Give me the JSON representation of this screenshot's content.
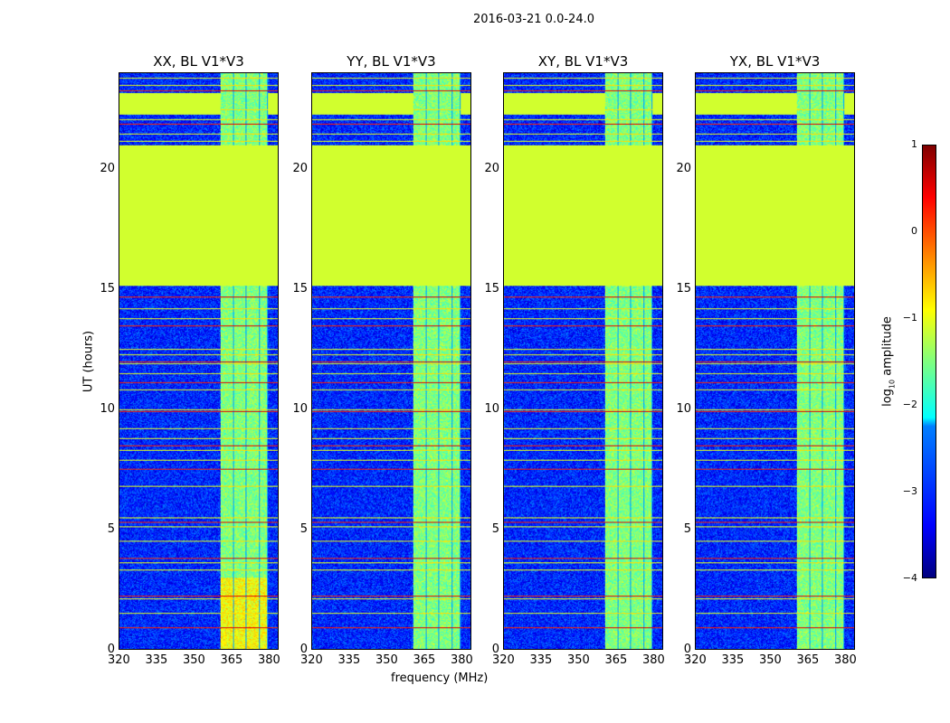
{
  "chart_data": {
    "type": "heatmap",
    "title": "2016-03-21 0.0-24.0",
    "xlabel": "frequency (MHz)",
    "ylabel": "UT (hours)",
    "xlim": [
      320,
      384
    ],
    "ylim": [
      0,
      24
    ],
    "xticks": [
      "320",
      "335",
      "350",
      "365",
      "380"
    ],
    "yticks": [
      "0",
      "5",
      "10",
      "15",
      "20"
    ],
    "panels": [
      {
        "title": "XX, BL V1*V3"
      },
      {
        "title": "YY, BL V1*V3"
      },
      {
        "title": "XY, BL V1*V3"
      },
      {
        "title": "YX, BL V1*V3"
      }
    ],
    "features": {
      "background_log_amplitude": -3.2,
      "bright_band_MHz": [
        360.5,
        380
      ],
      "bright_band_log_amplitude": -1.5,
      "flagged_hours": [
        15.15,
        21.0
      ],
      "flagged_log_amplitude": -1.1,
      "rfi_hours": [
        0.9,
        1.5,
        2.1,
        2.2,
        3.3,
        3.6,
        3.8,
        4.5,
        5.1,
        5.3,
        5.5,
        6.8,
        7.5,
        7.9,
        8.3,
        8.5,
        8.8,
        9.2,
        9.9,
        10.0,
        10.8,
        11.1,
        11.5,
        11.9,
        12.0,
        12.3,
        12.5,
        13.5,
        13.8,
        14.2,
        14.7,
        21.2,
        21.5,
        21.9,
        22.1,
        22.5,
        23.3,
        23.5,
        23.8
      ]
    },
    "colorbar": {
      "label": "log10 amplitude",
      "label_main": "log",
      "label_sub": "10",
      "label_rest": " amplitude",
      "range": [
        -4,
        1
      ],
      "ticks": [
        "1",
        "0",
        "−1",
        "−2",
        "−3",
        "−4"
      ]
    }
  }
}
